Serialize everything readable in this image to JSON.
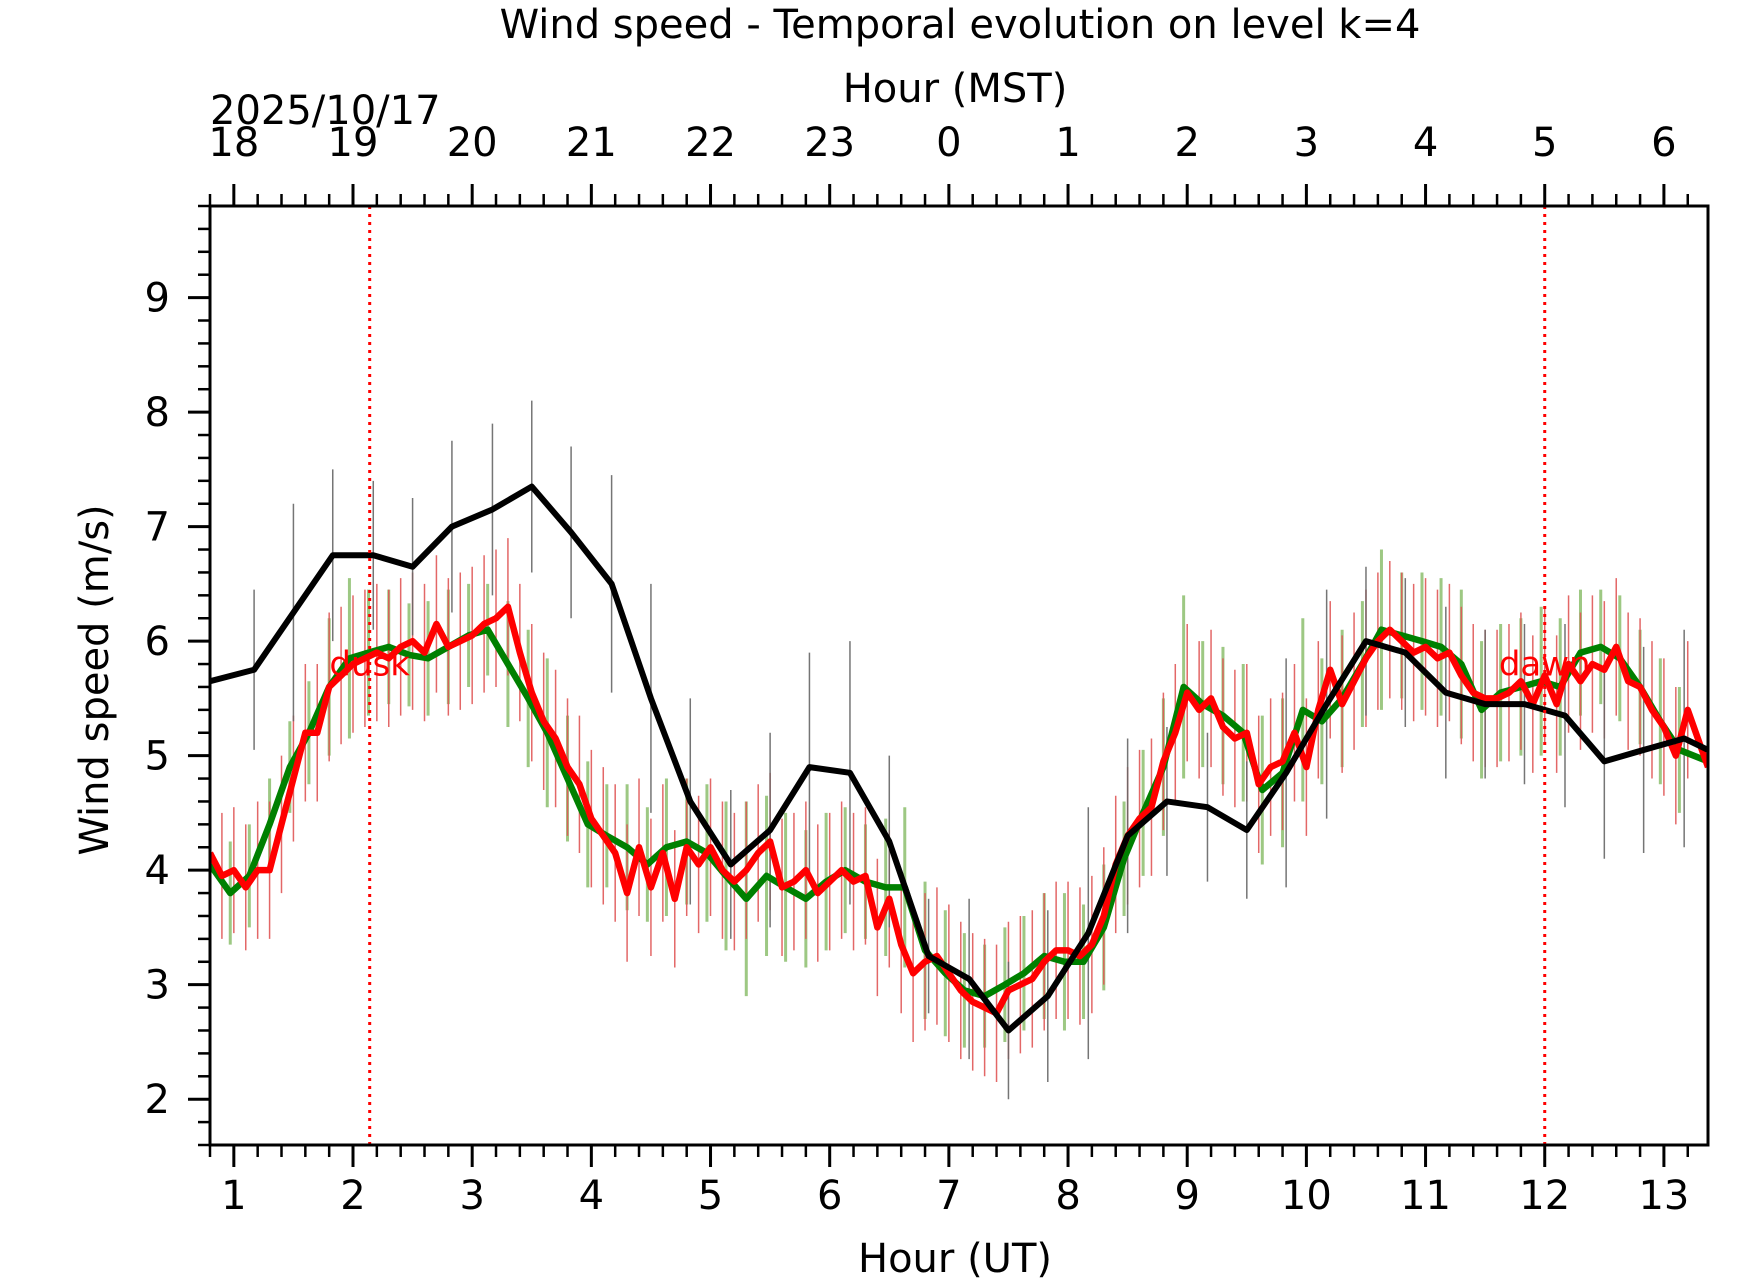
{
  "chart_data": {
    "type": "line",
    "title": "Wind speed - Temporal evolution on level k=4",
    "xlabel": "Hour (UT)",
    "x2label": "Hour (MST)",
    "ylabel": "Wind speed (m/s)",
    "date_label": "2025/10/17",
    "xlim": [
      0.8,
      13.37
    ],
    "ylim": [
      1.6,
      9.8
    ],
    "x_ticks": [
      1,
      2,
      3,
      4,
      5,
      6,
      7,
      8,
      9,
      10,
      11,
      12,
      13
    ],
    "x_tick_labels": [
      "1",
      "2",
      "3",
      "4",
      "5",
      "6",
      "7",
      "8",
      "9",
      "10",
      "11",
      "12",
      "13"
    ],
    "top_ticks": [
      1,
      2,
      3,
      4,
      5,
      6,
      7,
      8,
      9,
      10,
      11,
      12,
      13
    ],
    "top_tick_labels": [
      "18",
      "19",
      "20",
      "21",
      "22",
      "23",
      "0",
      "1",
      "2",
      "3",
      "4",
      "5",
      "6"
    ],
    "y_ticks": [
      2,
      3,
      4,
      5,
      6,
      7,
      8,
      9
    ],
    "y_tick_labels": [
      "2",
      "3",
      "4",
      "5",
      "6",
      "7",
      "8",
      "9"
    ],
    "grid": false,
    "annotations": [
      {
        "text": "dusk",
        "x": 2.14,
        "y": 5.7,
        "color": "#ff0000"
      },
      {
        "text": "dawn",
        "x": 12.0,
        "y": 5.7,
        "color": "#ff0000"
      }
    ],
    "vlines": [
      {
        "x": 2.14,
        "color": "#ff0000",
        "style": "dotted"
      },
      {
        "x": 12.0,
        "color": "#ff0000",
        "style": "dotted"
      }
    ],
    "series": [
      {
        "color": "#008000",
        "errcolor": "#7cb55a",
        "x": [
          0.8,
          0.97,
          1.13,
          1.3,
          1.47,
          1.63,
          1.8,
          1.97,
          2.13,
          2.3,
          2.47,
          2.63,
          2.8,
          2.97,
          3.13,
          3.3,
          3.47,
          3.63,
          3.8,
          3.97,
          4.13,
          4.3,
          4.47,
          4.63,
          4.8,
          4.97,
          5.13,
          5.3,
          5.47,
          5.63,
          5.8,
          5.97,
          6.13,
          6.3,
          6.47,
          6.63,
          6.8,
          6.97,
          7.13,
          7.3,
          7.47,
          7.63,
          7.8,
          7.97,
          8.13,
          8.3,
          8.47,
          8.63,
          8.8,
          8.97,
          9.13,
          9.3,
          9.47,
          9.63,
          9.8,
          9.97,
          10.13,
          10.3,
          10.47,
          10.63,
          10.8,
          10.97,
          11.13,
          11.3,
          11.47,
          11.63,
          11.8,
          11.97,
          12.13,
          12.3,
          12.47,
          12.63,
          12.8,
          12.97,
          13.13,
          13.37
        ],
        "y": [
          4.05,
          3.8,
          3.95,
          4.4,
          4.9,
          5.2,
          5.6,
          5.85,
          5.9,
          5.95,
          5.88,
          5.85,
          5.95,
          6.05,
          6.1,
          5.8,
          5.5,
          5.2,
          4.8,
          4.4,
          4.3,
          4.2,
          4.05,
          4.2,
          4.25,
          4.15,
          3.95,
          3.75,
          3.95,
          3.85,
          3.75,
          3.9,
          4.0,
          3.9,
          3.85,
          3.85,
          3.3,
          3.1,
          2.95,
          2.9,
          3.0,
          3.1,
          3.25,
          3.2,
          3.2,
          3.5,
          4.1,
          4.5,
          4.9,
          5.6,
          5.45,
          5.35,
          5.2,
          4.7,
          4.85,
          5.4,
          5.3,
          5.5,
          5.8,
          6.1,
          6.05,
          6.0,
          5.95,
          5.8,
          5.4,
          5.55,
          5.6,
          5.65,
          5.6,
          5.9,
          5.95,
          5.85,
          5.6,
          5.3,
          5.05,
          4.95
        ],
        "err": [
          0.45,
          0.45,
          0.45,
          0.4,
          0.4,
          0.45,
          0.6,
          0.7,
          0.55,
          0.5,
          0.45,
          0.5,
          0.5,
          0.45,
          0.4,
          0.55,
          0.6,
          0.65,
          0.55,
          0.55,
          0.45,
          0.55,
          0.5,
          0.6,
          0.55,
          0.6,
          0.65,
          0.85,
          0.7,
          0.65,
          0.6,
          0.6,
          0.55,
          0.5,
          0.6,
          0.7,
          0.6,
          0.55,
          0.5,
          0.45,
          0.5,
          0.5,
          0.55,
          0.6,
          0.5,
          0.55,
          0.5,
          0.55,
          0.6,
          0.8,
          0.55,
          0.6,
          0.6,
          0.65,
          0.65,
          0.8,
          0.55,
          0.6,
          0.55,
          0.7,
          0.55,
          0.6,
          0.6,
          0.65,
          0.6,
          0.6,
          0.6,
          0.65,
          0.6,
          0.55,
          0.5,
          0.55,
          0.5,
          0.55,
          0.55,
          0.4
        ]
      },
      {
        "color": "#ff0000",
        "errcolor": "#e05656",
        "x": [
          0.8,
          0.9,
          1.0,
          1.1,
          1.2,
          1.3,
          1.4,
          1.5,
          1.6,
          1.7,
          1.8,
          1.9,
          2.0,
          2.1,
          2.2,
          2.3,
          2.4,
          2.5,
          2.6,
          2.7,
          2.8,
          2.9,
          3.0,
          3.1,
          3.2,
          3.3,
          3.4,
          3.5,
          3.6,
          3.7,
          3.8,
          3.9,
          4.0,
          4.1,
          4.2,
          4.3,
          4.4,
          4.5,
          4.6,
          4.7,
          4.8,
          4.9,
          5.0,
          5.1,
          5.2,
          5.3,
          5.4,
          5.5,
          5.6,
          5.7,
          5.8,
          5.9,
          6.0,
          6.1,
          6.2,
          6.3,
          6.4,
          6.5,
          6.6,
          6.7,
          6.8,
          6.9,
          7.0,
          7.1,
          7.2,
          7.3,
          7.4,
          7.5,
          7.6,
          7.7,
          7.8,
          7.9,
          8.0,
          8.1,
          8.2,
          8.3,
          8.4,
          8.5,
          8.6,
          8.7,
          8.8,
          8.9,
          9.0,
          9.1,
          9.2,
          9.3,
          9.4,
          9.5,
          9.6,
          9.7,
          9.8,
          9.9,
          10.0,
          10.1,
          10.2,
          10.3,
          10.4,
          10.5,
          10.6,
          10.7,
          10.8,
          10.9,
          11.0,
          11.1,
          11.2,
          11.3,
          11.4,
          11.5,
          11.6,
          11.7,
          11.8,
          11.9,
          12.0,
          12.1,
          12.2,
          12.3,
          12.4,
          12.5,
          12.6,
          12.7,
          12.8,
          12.9,
          13.0,
          13.1,
          13.2,
          13.37
        ],
        "y": [
          4.15,
          3.95,
          4.0,
          3.85,
          4.0,
          4.0,
          4.4,
          4.8,
          5.2,
          5.2,
          5.6,
          5.7,
          5.8,
          5.85,
          5.9,
          5.85,
          5.95,
          6.0,
          5.9,
          6.15,
          5.95,
          6.0,
          6.05,
          6.15,
          6.2,
          6.3,
          5.9,
          5.55,
          5.3,
          5.15,
          4.9,
          4.75,
          4.45,
          4.3,
          4.15,
          3.8,
          4.2,
          3.85,
          4.15,
          3.75,
          4.2,
          4.05,
          4.2,
          4.0,
          3.9,
          4.0,
          4.15,
          4.25,
          3.85,
          3.9,
          4.0,
          3.8,
          3.9,
          4.0,
          3.9,
          3.95,
          3.5,
          3.75,
          3.35,
          3.1,
          3.2,
          3.25,
          3.1,
          2.95,
          2.85,
          2.8,
          2.75,
          2.95,
          3.0,
          3.05,
          3.2,
          3.3,
          3.3,
          3.25,
          3.35,
          3.6,
          4.05,
          4.3,
          4.45,
          4.55,
          4.95,
          5.2,
          5.55,
          5.4,
          5.5,
          5.25,
          5.15,
          5.2,
          4.75,
          4.9,
          4.95,
          5.2,
          4.9,
          5.4,
          5.75,
          5.45,
          5.65,
          5.85,
          6.0,
          6.1,
          6.0,
          5.9,
          5.95,
          5.85,
          5.9,
          5.7,
          5.55,
          5.5,
          5.5,
          5.55,
          5.65,
          5.45,
          5.7,
          5.45,
          5.8,
          5.65,
          5.8,
          5.75,
          5.95,
          5.65,
          5.6,
          5.4,
          5.25,
          5.0,
          5.4,
          4.9
        ],
        "err": [
          0.6,
          0.55,
          0.55,
          0.55,
          0.6,
          0.6,
          0.6,
          0.55,
          0.6,
          0.6,
          0.65,
          0.6,
          0.6,
          0.6,
          0.6,
          0.6,
          0.6,
          0.6,
          0.6,
          0.6,
          0.6,
          0.6,
          0.6,
          0.6,
          0.6,
          0.6,
          0.6,
          0.6,
          0.6,
          0.6,
          0.6,
          0.6,
          0.6,
          0.6,
          0.6,
          0.6,
          0.6,
          0.6,
          0.6,
          0.6,
          0.6,
          0.6,
          0.6,
          0.6,
          0.6,
          0.6,
          0.6,
          0.6,
          0.6,
          0.6,
          0.6,
          0.6,
          0.6,
          0.6,
          0.6,
          0.6,
          0.6,
          0.6,
          0.6,
          0.6,
          0.6,
          0.6,
          0.6,
          0.6,
          0.6,
          0.6,
          0.6,
          0.6,
          0.6,
          0.6,
          0.6,
          0.6,
          0.6,
          0.6,
          0.6,
          0.6,
          0.6,
          0.6,
          0.6,
          0.6,
          0.6,
          0.6,
          0.6,
          0.6,
          0.6,
          0.6,
          0.6,
          0.6,
          0.6,
          0.6,
          0.6,
          0.6,
          0.6,
          0.6,
          0.6,
          0.6,
          0.6,
          0.6,
          0.6,
          0.6,
          0.6,
          0.6,
          0.6,
          0.6,
          0.6,
          0.6,
          0.6,
          0.6,
          0.6,
          0.6,
          0.6,
          0.6,
          0.6,
          0.6,
          0.6,
          0.6,
          0.6,
          0.6,
          0.6,
          0.6,
          0.6,
          0.6,
          0.6,
          0.6,
          0.6,
          0.6
        ]
      },
      {
        "color": "#000000",
        "errcolor": "#666666",
        "x": [
          0.8,
          1.17,
          1.5,
          1.83,
          2.17,
          2.5,
          2.83,
          3.17,
          3.5,
          3.83,
          4.17,
          4.5,
          4.83,
          5.17,
          5.5,
          5.83,
          6.17,
          6.5,
          6.83,
          7.17,
          7.5,
          7.83,
          8.17,
          8.5,
          8.83,
          9.17,
          9.5,
          9.83,
          10.17,
          10.5,
          10.83,
          11.17,
          11.5,
          11.83,
          12.17,
          12.5,
          12.83,
          13.17,
          13.37
        ],
        "y": [
          5.65,
          5.75,
          6.25,
          6.75,
          6.75,
          6.65,
          7.0,
          7.15,
          7.35,
          6.95,
          6.5,
          5.5,
          4.6,
          4.05,
          4.35,
          4.9,
          4.85,
          4.25,
          3.25,
          3.05,
          2.6,
          2.9,
          3.45,
          4.3,
          4.6,
          4.55,
          4.35,
          4.85,
          5.45,
          6.0,
          5.9,
          5.55,
          5.45,
          5.45,
          5.35,
          4.95,
          5.05,
          5.15,
          5.05
        ],
        "err": [
          0.5,
          0.7,
          0.95,
          0.75,
          0.65,
          0.6,
          0.75,
          0.75,
          0.75,
          0.75,
          0.95,
          1.0,
          0.9,
          0.65,
          0.85,
          1.0,
          1.15,
          0.75,
          0.5,
          0.7,
          0.6,
          0.75,
          1.1,
          0.85,
          0.65,
          0.65,
          0.6,
          1.0,
          1.0,
          0.65,
          0.65,
          0.75,
          0.65,
          0.7,
          0.8,
          0.85,
          0.9,
          0.95,
          0.9
        ]
      }
    ]
  }
}
